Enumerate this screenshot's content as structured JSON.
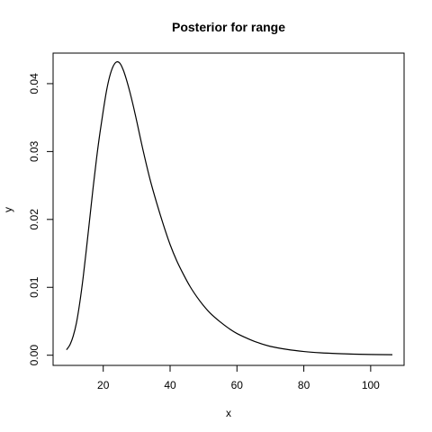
{
  "chart_data": {
    "type": "line",
    "title": "Posterior for range",
    "xlabel": "x",
    "ylabel": "y",
    "xlim": [
      5,
      110
    ],
    "ylim": [
      -0.0015,
      0.0445
    ],
    "xticks": [
      20,
      40,
      60,
      80,
      100
    ],
    "yticks": [
      0.0,
      0.01,
      0.02,
      0.03,
      0.04
    ],
    "ytick_labels": [
      "0.00",
      "0.01",
      "0.02",
      "0.03",
      "0.04"
    ],
    "grid": false,
    "legend": "none",
    "series": [
      {
        "color": "#000000",
        "x": [
          9,
          10,
          11,
          12,
          13,
          14,
          15,
          16,
          17,
          18,
          19,
          20,
          21,
          22,
          23,
          24,
          25,
          26,
          27,
          28,
          29,
          30,
          32,
          34,
          36,
          38,
          40,
          42,
          44,
          46,
          48,
          50,
          52,
          55,
          58,
          60,
          63,
          66,
          70,
          75,
          80,
          85,
          90,
          95,
          100,
          106.5
        ],
        "y": [
          0.0008,
          0.0015,
          0.0028,
          0.0048,
          0.0078,
          0.0115,
          0.0158,
          0.0203,
          0.0248,
          0.029,
          0.0327,
          0.036,
          0.039,
          0.0412,
          0.0426,
          0.0432,
          0.043,
          0.042,
          0.0405,
          0.0387,
          0.0367,
          0.0345,
          0.03,
          0.0259,
          0.0224,
          0.0192,
          0.0163,
          0.0139,
          0.0119,
          0.0101,
          0.0086,
          0.0073,
          0.0062,
          0.0049,
          0.0038,
          0.0032,
          0.0025,
          0.0019,
          0.0013,
          0.00085,
          0.00055,
          0.00036,
          0.00024,
          0.00016,
          0.00011,
          7e-05
        ]
      }
    ]
  }
}
